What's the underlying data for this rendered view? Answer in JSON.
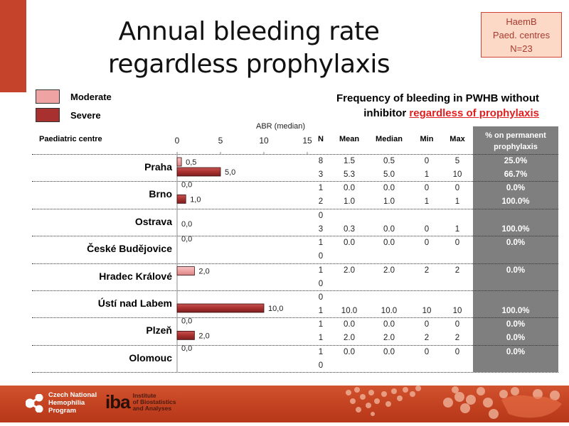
{
  "header": {
    "title_line1": "Annual bleeding rate",
    "title_line2": "regardless prophylaxis",
    "info_box": [
      "HaemB",
      "Paed. centres",
      "N=23"
    ],
    "subtitle_line1": "Frequency of bleeding in PWHB without",
    "subtitle_line2_prefix": "inhibitor ",
    "subtitle_line2_highlight": "regardless of prophylaxis"
  },
  "colors": {
    "moderate": "#efa3a3",
    "severe": "#a8302f",
    "accent": "#c4432a",
    "highlight_text": "#e02020",
    "stat_column_bg": "#7f7f7f"
  },
  "table": {
    "centre_header": "Paediatric centre",
    "stat_headers": [
      "N",
      "Mean",
      "Median",
      "Min",
      "Max"
    ],
    "perm_header_line1": "% on permanent",
    "perm_header_line2": "prophylaxis",
    "rows": [
      {
        "centre": "Praha",
        "moderate": {
          "N": "8",
          "mean": "1.5",
          "median": "0.5",
          "min": "0",
          "max": "5",
          "perm": "25.0%"
        },
        "severe": {
          "N": "3",
          "mean": "5.3",
          "median": "5.0",
          "min": "1",
          "max": "10",
          "perm": "66.7%"
        }
      },
      {
        "centre": "Brno",
        "moderate": {
          "N": "1",
          "mean": "0.0",
          "median": "0.0",
          "min": "0",
          "max": "0",
          "perm": "0.0%"
        },
        "severe": {
          "N": "2",
          "mean": "1.0",
          "median": "1.0",
          "min": "1",
          "max": "1",
          "perm": "100.0%"
        }
      },
      {
        "centre": "Ostrava",
        "moderate": {
          "N": "0",
          "mean": "",
          "median": "",
          "min": "",
          "max": "",
          "perm": ""
        },
        "severe": {
          "N": "3",
          "mean": "0.3",
          "median": "0.0",
          "min": "0",
          "max": "1",
          "perm": "100.0%"
        }
      },
      {
        "centre": "České Budějovice",
        "moderate": {
          "N": "1",
          "mean": "0.0",
          "median": "0.0",
          "min": "0",
          "max": "0",
          "perm": "0.0%"
        },
        "severe": {
          "N": "0",
          "mean": "",
          "median": "",
          "min": "",
          "max": "",
          "perm": ""
        }
      },
      {
        "centre": "Hradec Králové",
        "moderate": {
          "N": "1",
          "mean": "2.0",
          "median": "2.0",
          "min": "2",
          "max": "2",
          "perm": "0.0%"
        },
        "severe": {
          "N": "0",
          "mean": "",
          "median": "",
          "min": "",
          "max": "",
          "perm": ""
        }
      },
      {
        "centre": "Ústí nad Labem",
        "moderate": {
          "N": "0",
          "mean": "",
          "median": "",
          "min": "",
          "max": "",
          "perm": ""
        },
        "severe": {
          "N": "1",
          "mean": "10.0",
          "median": "10.0",
          "min": "10",
          "max": "10",
          "perm": "100.0%"
        }
      },
      {
        "centre": "Plzeň",
        "moderate": {
          "N": "1",
          "mean": "0.0",
          "median": "0.0",
          "min": "0",
          "max": "0",
          "perm": "0.0%"
        },
        "severe": {
          "N": "1",
          "mean": "2.0",
          "median": "2.0",
          "min": "2",
          "max": "2",
          "perm": "0.0%"
        }
      },
      {
        "centre": "Olomouc",
        "moderate": {
          "N": "1",
          "mean": "0.0",
          "median": "0.0",
          "min": "0",
          "max": "0",
          "perm": "0.0%"
        },
        "severe": {
          "N": "0",
          "mean": "",
          "median": "",
          "min": "",
          "max": "",
          "perm": ""
        }
      }
    ]
  },
  "chart_data": {
    "type": "bar",
    "orientation": "horizontal",
    "title": "Annual bleeding rate regardless prophylaxis",
    "xlabel": "ABR (median)",
    "ylabel": "Paediatric centre",
    "xlim": [
      0,
      15
    ],
    "xticks": [
      "0",
      "5",
      "10",
      "15"
    ],
    "categories": [
      "Praha",
      "Brno",
      "Ostrava",
      "České Budějovice",
      "Hradec Králové",
      "Ústí nad Labem",
      "Plzeň",
      "Olomouc"
    ],
    "series": [
      {
        "name": "Moderate",
        "values": [
          0.5,
          0.0,
          null,
          0.0,
          2.0,
          null,
          0.0,
          0.0
        ],
        "labels": [
          "0,5",
          "0,0",
          "",
          "0,0",
          "2,0",
          "",
          "0,0",
          "0,0"
        ]
      },
      {
        "name": "Severe",
        "values": [
          5.0,
          1.0,
          0.0,
          null,
          null,
          10.0,
          2.0,
          null
        ],
        "labels": [
          "5,0",
          "1,0",
          "0,0",
          "",
          "",
          "10,0",
          "2,0",
          ""
        ]
      }
    ],
    "legend": [
      "Moderate",
      "Severe"
    ],
    "legend_position": "top-left",
    "grid": false
  },
  "footer": {
    "cnhp_lines": [
      "Czech National",
      "Hemophilia",
      "Program"
    ],
    "iba_logo": "iba",
    "iba_lines": [
      "Institute",
      "of Biostatistics",
      "and Analyses"
    ]
  }
}
